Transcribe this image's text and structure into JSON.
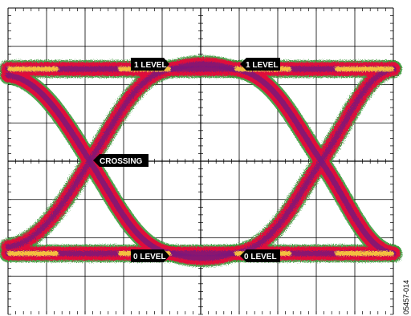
{
  "figure": {
    "figure_id": "05457-014",
    "callouts": {
      "one_level_left": "1 LEVEL",
      "one_level_right": "1 LEVEL",
      "crossing": "CROSSING",
      "zero_level_left": "0 LEVEL",
      "zero_level_right": "0 LEVEL"
    },
    "colors": {
      "grid": "#000000",
      "trace_outer": "#3a9a3a",
      "trace_mid": "#e0103a",
      "trace_core": "#7a1a7a",
      "trace_hot": "#ffd23a",
      "callout_bg": "#000000",
      "callout_text": "#ffffff"
    }
  }
}
